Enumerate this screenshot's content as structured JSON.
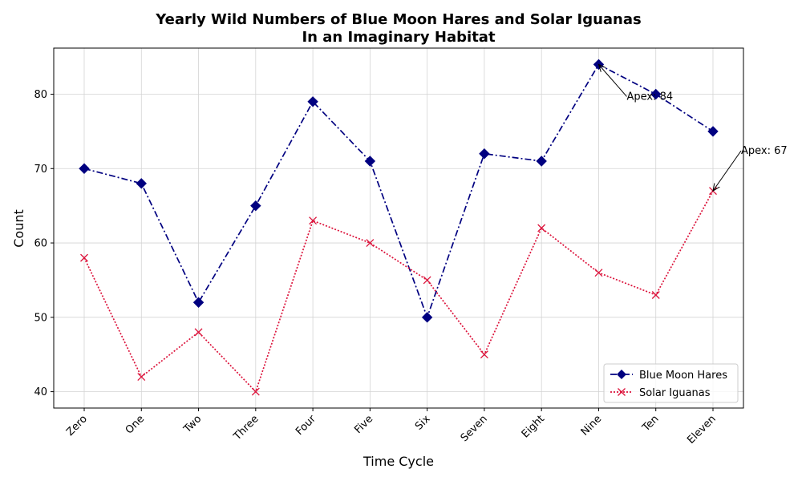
{
  "chart_data": {
    "type": "line",
    "title": "Yearly Wild Numbers of Blue Moon Hares and Solar Iguanas",
    "subtitle": "In an Imaginary Habitat",
    "xlabel": "Time Cycle",
    "ylabel": "Count",
    "categories": [
      "Zero",
      "One",
      "Two",
      "Three",
      "Four",
      "Five",
      "Six",
      "Seven",
      "Eight",
      "Nine",
      "Ten",
      "Eleven"
    ],
    "ylim": [
      37.8,
      86.2
    ],
    "yticks": [
      40,
      50,
      60,
      70,
      80
    ],
    "grid": true,
    "legend_position": "lower-right",
    "series": [
      {
        "name": "Blue Moon Hares",
        "values": [
          70,
          68,
          52,
          65,
          79,
          71,
          50,
          72,
          71,
          84,
          80,
          75
        ],
        "color": "#000080",
        "line_style": "dash-dot",
        "marker": "diamond"
      },
      {
        "name": "Solar Iguanas",
        "values": [
          58,
          42,
          48,
          40,
          63,
          60,
          55,
          45,
          62,
          56,
          53,
          67
        ],
        "color": "#dc143c",
        "line_style": "dotted",
        "marker": "x"
      }
    ],
    "annotations": [
      {
        "text": "Apex: 84",
        "series": 0,
        "category": "Nine",
        "value": 84
      },
      {
        "text": "Apex: 67",
        "series": 1,
        "category": "Eleven",
        "value": 67
      }
    ]
  }
}
